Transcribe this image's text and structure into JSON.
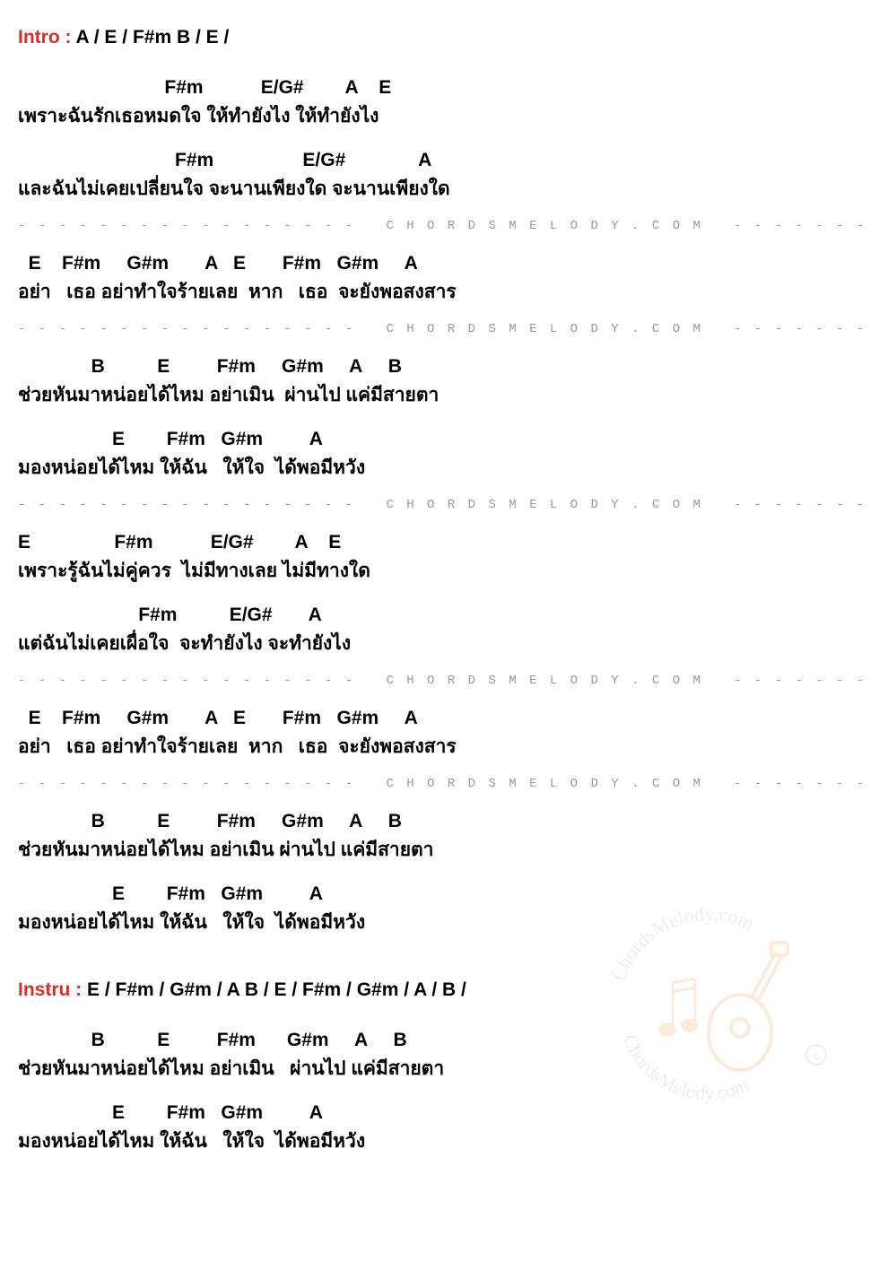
{
  "colors": {
    "accent": "#d32f2f",
    "text": "#000000",
    "divider": "#999999",
    "background": "#ffffff",
    "watermark_stroke": "#f5a55a",
    "watermark_text": "#b0b0b0"
  },
  "typography": {
    "font_family": "Tahoma, Arial, sans-serif",
    "font_size_main": 21,
    "font_weight": "bold",
    "divider_font_size": 14
  },
  "intro": {
    "label": "Intro :",
    "chords": " A  /  E  /  F#m   B  /  E  /"
  },
  "instru": {
    "label": "Instru :",
    "chords": " E  /  F#m  /  G#m  /  A  B  /  E  /  F#m  /  G#m  /  A  /  B  /"
  },
  "divider_text": "- - - - - - - - - - - - - - - - -   C H O R D S M E L O D Y . C O M   - - - - - - - - - - - - - - - - - -",
  "watermark": {
    "text_top": "ChordsMelody.com",
    "text_bottom": "ChordsMelody.com"
  },
  "blocks": [
    {
      "type": "pair",
      "chord": "                            F#m           E/G#        A    E",
      "lyric": "เพราะฉันรักเธอหมดใจ ให้ทำยังไง ให้ทำยังไง"
    },
    {
      "type": "pair",
      "chord": "                              F#m                 E/G#              A",
      "lyric": "และฉันไม่เคยเปลี่ยนใจ จะนานเพียงใด จะนานเพียงใด"
    },
    {
      "type": "divider"
    },
    {
      "type": "pair",
      "chord": "  E    F#m     G#m       A   E       F#m   G#m     A",
      "lyric": "อย่า   เธอ อย่าทำใจร้ายเลย  หาก   เธอ  จะยังพอสงสาร"
    },
    {
      "type": "divider"
    },
    {
      "type": "pair",
      "chord": "              B          E         F#m     G#m     A     B",
      "lyric": "ช่วยหันมาหน่อยได้ไหม อย่าเมิน  ผ่านไป แค่มีสายตา"
    },
    {
      "type": "pair",
      "chord": "                  E        F#m   G#m         A",
      "lyric": "มองหน่อยได้ไหม ให้ฉัน   ให้ใจ  ได้พอมีหวัง"
    },
    {
      "type": "divider"
    },
    {
      "type": "pair",
      "chord": "E                F#m           E/G#        A    E",
      "lyric": "เพราะรู้ฉันไม่คู่ควร  ไม่มีทางเลย ไม่มีทางใด"
    },
    {
      "type": "pair",
      "chord": "                       F#m          E/G#       A",
      "lyric": "แต่ฉันไม่เคยเผื่อใจ  จะทำยังไง จะทำยังไง"
    },
    {
      "type": "divider"
    },
    {
      "type": "pair",
      "chord": "  E    F#m     G#m       A   E       F#m   G#m     A",
      "lyric": "อย่า   เธอ อย่าทำใจร้ายเลย  หาก   เธอ  จะยังพอสงสาร"
    },
    {
      "type": "divider"
    },
    {
      "type": "pair",
      "chord": "              B          E         F#m     G#m     A     B",
      "lyric": "ช่วยหันมาหน่อยได้ไหม อย่าเมิน ผ่านไป แค่มีสายตา"
    },
    {
      "type": "pair",
      "chord": "                  E        F#m   G#m         A",
      "lyric": "มองหน่อยได้ไหม ให้ฉัน   ให้ใจ  ได้พอมีหวัง"
    },
    {
      "type": "instru"
    },
    {
      "type": "pair",
      "chord": "              B          E         F#m      G#m     A     B",
      "lyric": "ช่วยหันมาหน่อยได้ไหม อย่าเมิน   ผ่านไป แค่มีสายตา"
    },
    {
      "type": "pair",
      "chord": "                  E        F#m   G#m         A",
      "lyric": "มองหน่อยได้ไหม ให้ฉัน   ให้ใจ  ได้พอมีหวัง"
    }
  ]
}
